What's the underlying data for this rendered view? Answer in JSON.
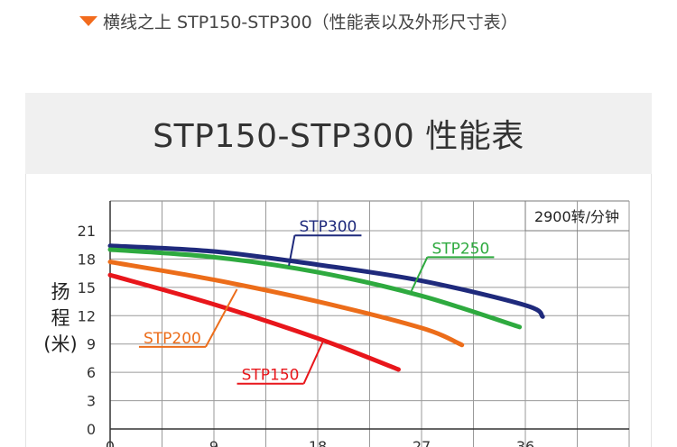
{
  "heading": {
    "icon": "triangle-down-icon",
    "icon_color": "#f26b1d",
    "text": "横线之上 STP150-STP300（性能表以及外形尺寸表）"
  },
  "chart_data": {
    "type": "line",
    "title": "STP150-STP300 性能表",
    "ylabel_lines": [
      "扬",
      "程",
      "(米)"
    ],
    "xlabel": "",
    "speed_note": "2900转/分钟",
    "xlim": [
      0,
      45
    ],
    "ylim": [
      0,
      21
    ],
    "x_ticks": [
      0,
      9,
      18,
      27,
      36
    ],
    "y_ticks": [
      0,
      3,
      6,
      9,
      12,
      15,
      18,
      21
    ],
    "grid": true,
    "series": [
      {
        "name": "STP300",
        "color": "#1f2a7c",
        "x": [
          0,
          9,
          18,
          27,
          36,
          37.5
        ],
        "y": [
          19.4,
          18.8,
          17.4,
          15.7,
          13.1,
          11.9
        ],
        "label_anchor": [
          15.5,
          17.3
        ],
        "label_pos": [
          16,
          20.5
        ]
      },
      {
        "name": "STP250",
        "color": "#2eaa3f",
        "x": [
          0,
          9,
          18,
          27,
          35.5
        ],
        "y": [
          19,
          18.2,
          16.6,
          14.1,
          10.8
        ],
        "label_anchor": [
          26,
          14.3
        ],
        "label_pos": [
          27.5,
          18.2
        ]
      },
      {
        "name": "STP200",
        "color": "#ec6d1a",
        "x": [
          0,
          9,
          18,
          27,
          30.5
        ],
        "y": [
          17.7,
          15.8,
          13.5,
          10.7,
          8.9
        ],
        "label_anchor": [
          11,
          14.8
        ],
        "label_pos": [
          2.5,
          8.7
        ]
      },
      {
        "name": "STP150",
        "color": "#e8161b",
        "x": [
          0,
          9,
          18,
          25
        ],
        "y": [
          16.3,
          13.2,
          9.6,
          6.3
        ],
        "label_anchor": [
          18.5,
          9.4
        ],
        "label_pos": [
          11,
          4.8
        ]
      }
    ]
  }
}
